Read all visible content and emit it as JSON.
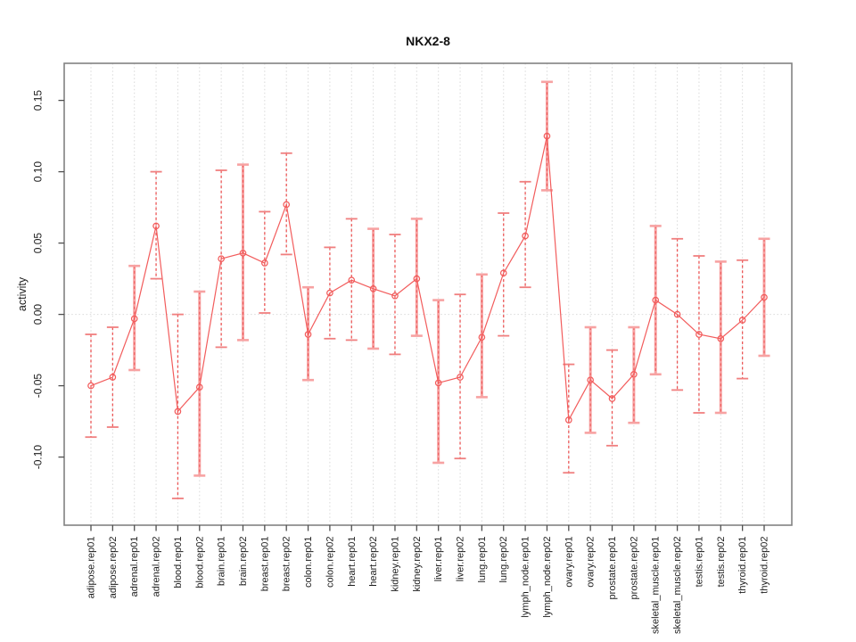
{
  "page": {
    "background": "#ffffff"
  },
  "chart_data": {
    "type": "line",
    "title": "NKX2-8",
    "xlabel": "",
    "ylabel": "activity",
    "ylim": [
      -0.148,
      0.176
    ],
    "grid": {
      "vertical": "dotted line at every category",
      "horizontal": "dotted line at zero only"
    },
    "legend": "none",
    "yticks": [
      {
        "label": "0.15",
        "value": 0.15
      },
      {
        "label": "0.10",
        "value": 0.1
      },
      {
        "label": "0.05",
        "value": 0.05
      },
      {
        "label": "0.00",
        "value": 0.0
      },
      {
        "label": "-0.05",
        "value": -0.05
      },
      {
        "label": "-0.10",
        "value": -0.1
      }
    ],
    "categories": [
      "adipose.rep01",
      "adipose.rep02",
      "adrenal.rep01",
      "adrenal.rep02",
      "blood.rep01",
      "blood.rep02",
      "brain.rep01",
      "brain.rep02",
      "breast.rep01",
      "breast.rep02",
      "colon.rep01",
      "colon.rep02",
      "heart.rep01",
      "heart.rep02",
      "kidney.rep01",
      "kidney.rep02",
      "liver.rep01",
      "liver.rep02",
      "lung.rep01",
      "lung.rep02",
      "lymph_node.rep01",
      "lymph_node.rep02",
      "ovary.rep01",
      "ovary.rep02",
      "prostate.rep01",
      "prostate.rep02",
      "skeletal_muscle.rep01",
      "skeletal_muscle.rep02",
      "testis.rep01",
      "testis.rep02",
      "thyroid.rep01",
      "thyroid.rep02"
    ],
    "series": [
      {
        "name": "activity",
        "marker": "open-circle",
        "values": [
          -0.05,
          -0.044,
          -0.003,
          0.062,
          -0.068,
          -0.051,
          0.039,
          0.043,
          0.036,
          0.077,
          -0.014,
          0.015,
          0.024,
          0.018,
          0.013,
          0.025,
          -0.048,
          -0.044,
          -0.016,
          0.029,
          0.055,
          0.125,
          -0.074,
          -0.046,
          -0.059,
          -0.042,
          0.01,
          0.0,
          -0.014,
          -0.017,
          -0.004,
          0.012
        ],
        "error_high": [
          -0.014,
          -0.009,
          0.034,
          0.1,
          0.0,
          0.016,
          0.101,
          0.105,
          0.072,
          0.113,
          0.019,
          0.047,
          0.067,
          0.06,
          0.056,
          0.067,
          0.01,
          0.014,
          0.028,
          0.071,
          0.093,
          0.163,
          -0.035,
          -0.009,
          -0.025,
          -0.009,
          0.062,
          0.053,
          0.041,
          0.037,
          0.038,
          0.053
        ],
        "error_low": [
          -0.086,
          -0.079,
          -0.039,
          0.025,
          -0.129,
          -0.113,
          -0.023,
          -0.018,
          0.001,
          0.042,
          -0.046,
          -0.017,
          -0.018,
          -0.024,
          -0.028,
          -0.015,
          -0.104,
          -0.101,
          -0.058,
          -0.015,
          0.019,
          0.087,
          -0.111,
          -0.083,
          -0.092,
          -0.076,
          -0.042,
          -0.053,
          -0.069,
          -0.069,
          -0.045,
          -0.029
        ],
        "error_bar_styles": [
          "dashed",
          "dashed",
          "solid",
          "dashed",
          "dashed",
          "solid",
          "dashed",
          "solid",
          "dashed",
          "dashed",
          "solid",
          "dashed",
          "dashed",
          "solid",
          "dashed",
          "solid",
          "solid",
          "dashed",
          "solid",
          "dashed",
          "dashed",
          "solid",
          "dashed",
          "solid",
          "dashed",
          "solid",
          "solid",
          "dashed",
          "dashed",
          "solid",
          "dashed",
          "solid"
        ]
      }
    ],
    "colors": {
      "line": "#f25c5c",
      "marker": "#f25c5c",
      "error_dashed": "#ec4f4f",
      "error_solid": "#f7a2a2",
      "cap_dashed": "#f07f7f",
      "grid": "#d9d9d9",
      "frame": "#828282",
      "tick": "#4f4f4f",
      "text": "#1c1c1c"
    }
  }
}
